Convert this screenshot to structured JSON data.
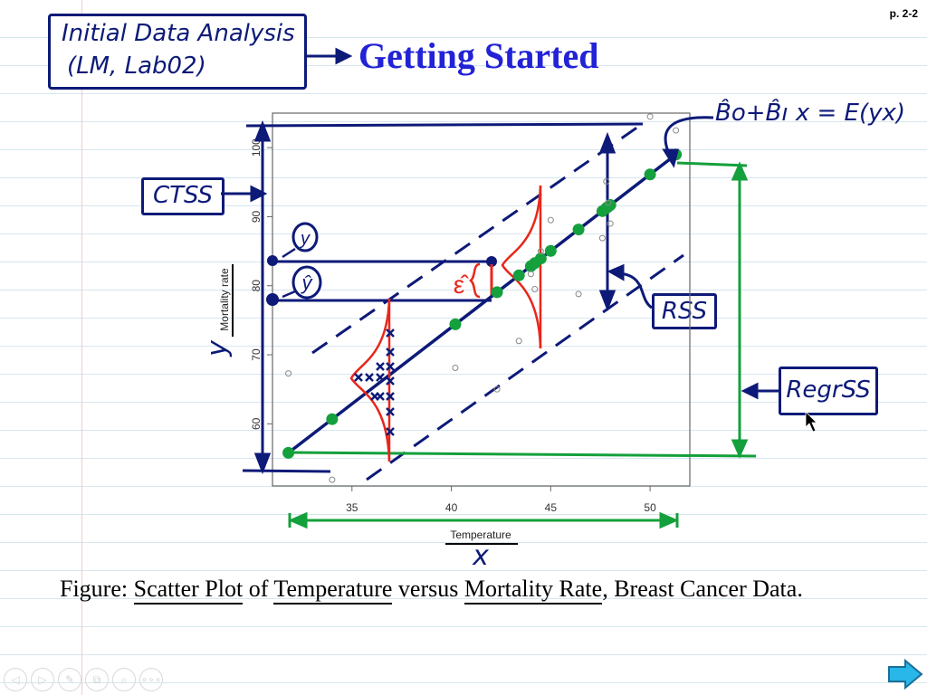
{
  "page_number": "p. 2-2",
  "title": "Getting Started",
  "note_box": {
    "line1": "Initial Data Analysis",
    "line2": "(LM, Lab02)"
  },
  "annotations": {
    "ctss": "CTSS",
    "rss": "RSS",
    "regrss": "RegrSS",
    "y_obs": "y",
    "y_hat": "ŷ",
    "epsilon_hat": "ε̂",
    "fit_equation": "B̂o+B̂ı x = E(yx)",
    "x_axis_hand": "x",
    "y_axis_hand": "y"
  },
  "figure": {
    "xlabel": "Temperature",
    "ylabel": "Mortality rate",
    "x_ticks": [
      35,
      40,
      45,
      50
    ],
    "y_ticks": [
      60,
      70,
      80,
      90,
      100
    ]
  },
  "chart_data": {
    "type": "scatter",
    "x": [
      34.0,
      31.8,
      40.2,
      42.3,
      43.4,
      44.0,
      44.2,
      44.5,
      45.0,
      46.4,
      47.6,
      47.8,
      47.9,
      48.0,
      50.0,
      51.3
    ],
    "y": [
      51.9,
      67.3,
      68.1,
      65.0,
      72.0,
      81.7,
      79.5,
      85.0,
      89.5,
      78.8,
      86.9,
      95.1,
      92.0,
      89.0,
      104.5,
      102.5
    ],
    "fitted_line": {
      "x": [
        31.8,
        51.3
      ],
      "y": [
        55.8,
        99.0
      ]
    },
    "xlim": [
      31.0,
      52.0
    ],
    "ylim": [
      51.0,
      105.0
    ],
    "xlabel": "Temperature",
    "ylabel": "Mortality rate",
    "grid": false
  },
  "caption": {
    "prefix": "Figure:",
    "u1": "Scatter Plot",
    "t1": "of",
    "u2": "Temperature",
    "t2": "versus",
    "u3": "Mortality Rate",
    "t3": ", Breast Cancer Data."
  },
  "nav": {
    "icons": [
      "prev-icon",
      "next-icon",
      "pen-icon",
      "copy-icon",
      "zoom-icon",
      "more-icon"
    ],
    "glyphs": [
      "◁",
      "▷",
      "✎",
      "⧉",
      "⌕",
      "∘∘∘"
    ]
  },
  "colors": {
    "ink": "#0d1a78",
    "title": "#2222d6",
    "red": "#e8261a",
    "green": "#14a03c"
  }
}
